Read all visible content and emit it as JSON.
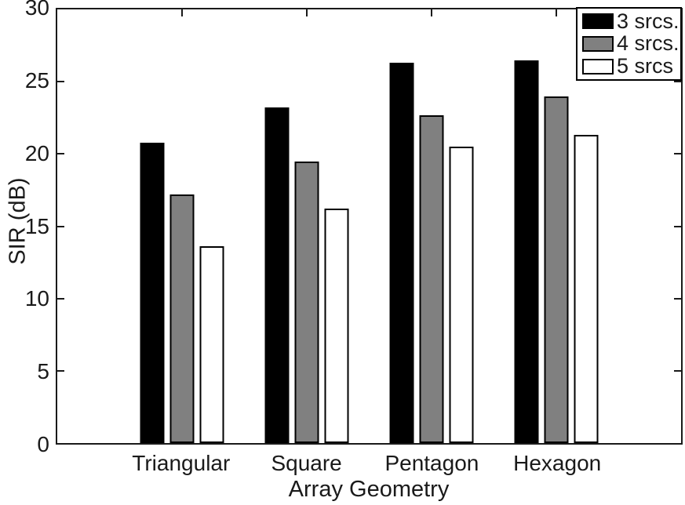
{
  "figure": {
    "background": "#ffffff",
    "axis_color": "#1a1a1a",
    "text_color": "#1a1a1a"
  },
  "chart_data": {
    "type": "bar",
    "title": "",
    "xlabel": "Array Geometry",
    "ylabel": "SIR (dB)",
    "categories": [
      "Triangular",
      "Square",
      "Pentagon",
      "Hexagon"
    ],
    "series": [
      {
        "name": "3 srcs.",
        "fill": "#000000",
        "edge": "#000000",
        "values": [
          20.8,
          23.2,
          26.3,
          26.5
        ]
      },
      {
        "name": "4 srcs.",
        "fill": "#808080",
        "edge": "#000000",
        "values": [
          17.2,
          19.5,
          22.7,
          24.0
        ]
      },
      {
        "name": "5 srcs",
        "fill": "#ffffff",
        "edge": "#000000",
        "values": [
          13.6,
          16.2,
          20.5,
          21.3
        ]
      }
    ],
    "ylim": [
      0,
      30
    ],
    "yticks": [
      0,
      5,
      10,
      15,
      20,
      25,
      30
    ],
    "group_centers_pct": [
      20,
      40,
      60,
      80
    ],
    "grid": false,
    "legend_position": "top-right"
  }
}
